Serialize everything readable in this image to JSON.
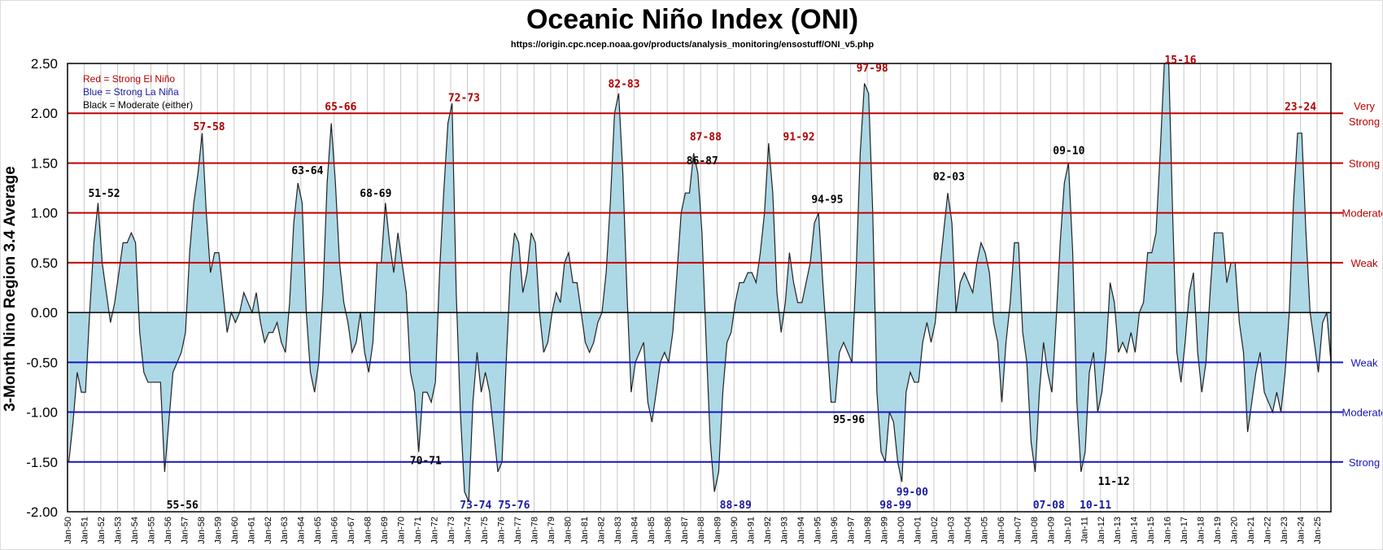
{
  "chart_data": {
    "type": "area",
    "title": "Oceanic Niño Index (ONI)",
    "subtitle": "https://origin.cpc.ncep.noaa.gov/products/analysis_monitoring/ensostuff/ONI_v5.php",
    "xlabel": "",
    "ylabel": "3-Month Nino Region 3.4 Average",
    "ylim": [
      -2.0,
      2.5
    ],
    "xlim": [
      1950,
      2025.83
    ],
    "yticks": [
      "2.50",
      "2.00",
      "1.50",
      "1.00",
      "0.50",
      "0.00",
      "-0.50",
      "-1.00",
      "-1.50",
      "-2.00"
    ],
    "ytick_values": [
      2.5,
      2.0,
      1.5,
      1.0,
      0.5,
      0.0,
      -0.5,
      -1.0,
      -1.5,
      -2.0
    ],
    "xticks": [
      "Jan-50",
      "Jan-51",
      "Jan-52",
      "Jan-53",
      "Jan-54",
      "Jan-55",
      "Jan-56",
      "Jan-57",
      "Jan-58",
      "Jan-59",
      "Jan-60",
      "Jan-61",
      "Jan-62",
      "Jan-63",
      "Jan-64",
      "Jan-65",
      "Jan-66",
      "Jan-67",
      "Jan-68",
      "Jan-69",
      "Jan-70",
      "Jan-71",
      "Jan-72",
      "Jan-73",
      "Jan-74",
      "Jan-75",
      "Jan-76",
      "Jan-77",
      "Jan-78",
      "Jan-79",
      "Jan-80",
      "Jan-81",
      "Jan-82",
      "Jan-83",
      "Jan-84",
      "Jan-85",
      "Jan-86",
      "Jan-87",
      "Jan-88",
      "Jan-89",
      "Jan-90",
      "Jan-91",
      "Jan-92",
      "Jan-93",
      "Jan-94",
      "Jan-95",
      "Jan-96",
      "Jan-97",
      "Jan-98",
      "Jan-99",
      "Jan-00",
      "Jan-01",
      "Jan-02",
      "Jan-03",
      "Jan-04",
      "Jan-05",
      "Jan-06",
      "Jan-07",
      "Jan-08",
      "Jan-09",
      "Jan-10",
      "Jan-11",
      "Jan-12",
      "Jan-13",
      "Jan-14",
      "Jan-15",
      "Jan-16",
      "Jan-17",
      "Jan-18",
      "Jan-19",
      "Jan-20",
      "Jan-21",
      "Jan-22",
      "Jan-23",
      "Jan-24",
      "Jan-25"
    ],
    "grid": "vertical",
    "series_start_year": 1950,
    "series_note": "seasonal values DJF, MAM, JJA, SON per year",
    "values": [
      -1.5,
      -1.1,
      -0.6,
      -0.8,
      -0.8,
      0.0,
      0.7,
      1.1,
      0.5,
      0.2,
      -0.1,
      0.1,
      0.4,
      0.7,
      0.7,
      0.8,
      0.7,
      -0.2,
      -0.6,
      -0.7,
      -0.7,
      -0.7,
      -0.7,
      -1.6,
      -1.1,
      -0.6,
      -0.5,
      -0.4,
      -0.2,
      0.6,
      1.1,
      1.4,
      1.8,
      1.0,
      0.4,
      0.6,
      0.6,
      0.2,
      -0.2,
      0.0,
      -0.1,
      0.0,
      0.2,
      0.1,
      0.0,
      0.2,
      -0.1,
      -0.3,
      -0.2,
      -0.2,
      -0.1,
      -0.3,
      -0.4,
      0.1,
      0.9,
      1.3,
      1.1,
      0.0,
      -0.6,
      -0.8,
      -0.5,
      0.2,
      1.3,
      1.9,
      1.3,
      0.5,
      0.1,
      -0.1,
      -0.4,
      -0.3,
      0.0,
      -0.4,
      -0.6,
      -0.3,
      0.5,
      0.5,
      1.1,
      0.7,
      0.4,
      0.8,
      0.5,
      0.2,
      -0.6,
      -0.8,
      -1.4,
      -0.8,
      -0.8,
      -0.9,
      -0.7,
      0.4,
      1.2,
      1.9,
      2.1,
      0.2,
      -1.0,
      -1.8,
      -1.9,
      -0.9,
      -0.4,
      -0.8,
      -0.6,
      -0.8,
      -1.2,
      -1.6,
      -1.5,
      -0.5,
      0.4,
      0.8,
      0.7,
      0.2,
      0.4,
      0.8,
      0.7,
      0.0,
      -0.4,
      -0.3,
      0.0,
      0.2,
      0.1,
      0.5,
      0.6,
      0.3,
      0.3,
      0.0,
      -0.3,
      -0.4,
      -0.3,
      -0.1,
      0.0,
      0.4,
      1.1,
      2.0,
      2.2,
      1.4,
      0.2,
      -0.8,
      -0.5,
      -0.4,
      -0.3,
      -0.9,
      -1.1,
      -0.8,
      -0.5,
      -0.4,
      -0.5,
      -0.2,
      0.4,
      1.0,
      1.2,
      1.2,
      1.6,
      1.4,
      0.8,
      -0.3,
      -1.3,
      -1.8,
      -1.6,
      -0.8,
      -0.3,
      -0.2,
      0.1,
      0.3,
      0.3,
      0.4,
      0.4,
      0.3,
      0.6,
      1.0,
      1.7,
      1.2,
      0.2,
      -0.2,
      0.1,
      0.6,
      0.3,
      0.1,
      0.1,
      0.3,
      0.5,
      0.9,
      1.0,
      0.3,
      -0.3,
      -0.9,
      -0.9,
      -0.4,
      -0.3,
      -0.4,
      -0.5,
      0.4,
      1.6,
      2.3,
      2.2,
      1.0,
      -0.8,
      -1.4,
      -1.5,
      -1.0,
      -1.1,
      -1.5,
      -1.7,
      -0.8,
      -0.6,
      -0.7,
      -0.7,
      -0.3,
      -0.1,
      -0.3,
      -0.1,
      0.4,
      0.8,
      1.2,
      0.9,
      0.0,
      0.3,
      0.4,
      0.3,
      0.2,
      0.5,
      0.7,
      0.6,
      0.4,
      -0.1,
      -0.3,
      -0.9,
      -0.3,
      0.1,
      0.7,
      0.7,
      -0.2,
      -0.5,
      -1.3,
      -1.6,
      -0.8,
      -0.3,
      -0.6,
      -0.8,
      -0.1,
      0.7,
      1.3,
      1.5,
      0.6,
      -0.9,
      -1.6,
      -1.4,
      -0.6,
      -0.4,
      -1.0,
      -0.8,
      -0.4,
      0.3,
      0.1,
      -0.4,
      -0.3,
      -0.4,
      -0.2,
      -0.4,
      0.0,
      0.1,
      0.6,
      0.6,
      0.8,
      1.6,
      2.5,
      2.6,
      1.0,
      -0.4,
      -0.7,
      -0.3,
      0.2,
      0.4,
      -0.4,
      -0.8,
      -0.5,
      0.2,
      0.8,
      0.8,
      0.8,
      0.3,
      0.5,
      0.5,
      -0.1,
      -0.4,
      -1.2,
      -0.9,
      -0.6,
      -0.4,
      -0.8,
      -0.9,
      -1.0,
      -0.8,
      -1.0,
      -0.6,
      0.0,
      1.1,
      1.8,
      1.8,
      0.8,
      0.0,
      -0.3,
      -0.6,
      -0.1,
      0.0,
      -0.5
    ],
    "thresholds": [
      {
        "value": 2.0,
        "label": "Very Strong",
        "color": "#c00000"
      },
      {
        "value": 1.5,
        "label": "Strong",
        "color": "#c00000"
      },
      {
        "value": 1.0,
        "label": "Moderate",
        "color": "#c00000"
      },
      {
        "value": 0.5,
        "label": "Weak",
        "color": "#c00000"
      },
      {
        "value": 0.0,
        "label": "",
        "color": "#000000"
      },
      {
        "value": -0.5,
        "label": "Weak",
        "color": "#1515c0"
      },
      {
        "value": -1.0,
        "label": "Moderate",
        "color": "#1515c0"
      },
      {
        "value": -1.5,
        "label": "Strong",
        "color": "#1515c0"
      }
    ],
    "legend": [
      {
        "text": "Red = Strong  El Niño",
        "color": "#b00000"
      },
      {
        "text": "Blue = Strong  La Niña",
        "color": "#1a1aa0"
      },
      {
        "text": "Black = Moderate  (either)",
        "color": "#000000"
      }
    ],
    "legend_position": "top-left",
    "annotations": [
      {
        "text": "51-52",
        "x": 1952.2,
        "y": 1.2,
        "color": "#000000"
      },
      {
        "text": "57-58",
        "x": 1958.5,
        "y": 1.87,
        "color": "#b00000"
      },
      {
        "text": "63-64",
        "x": 1964.4,
        "y": 1.43,
        "color": "#000000"
      },
      {
        "text": "65-66",
        "x": 1966.4,
        "y": 2.07,
        "color": "#b00000"
      },
      {
        "text": "68-69",
        "x": 1968.5,
        "y": 1.2,
        "color": "#000000"
      },
      {
        "text": "72-73",
        "x": 1973.8,
        "y": 2.16,
        "color": "#b00000"
      },
      {
        "text": "82-83",
        "x": 1983.4,
        "y": 2.3,
        "color": "#b00000"
      },
      {
        "text": "86-87",
        "x": 1988.1,
        "y": 1.53,
        "color": "#000000"
      },
      {
        "text": "87-88",
        "x": 1988.3,
        "y": 1.77,
        "color": "#b00000"
      },
      {
        "text": "91-92",
        "x": 1993.9,
        "y": 1.77,
        "color": "#b00000"
      },
      {
        "text": "94-95",
        "x": 1995.6,
        "y": 1.14,
        "color": "#000000"
      },
      {
        "text": "97-98",
        "x": 1998.3,
        "y": 2.46,
        "color": "#b00000"
      },
      {
        "text": "02-03",
        "x": 2002.9,
        "y": 1.37,
        "color": "#000000"
      },
      {
        "text": "09-10",
        "x": 2010.1,
        "y": 1.63,
        "color": "#000000"
      },
      {
        "text": "15-16",
        "x": 2016.8,
        "y": 2.54,
        "color": "#b00000"
      },
      {
        "text": "23-24",
        "x": 2024.0,
        "y": 2.07,
        "color": "#b00000"
      },
      {
        "text": "55-56",
        "x": 1956.9,
        "y": -1.97,
        "color": "#000000"
      },
      {
        "text": "70-71",
        "x": 1971.5,
        "y": -1.48,
        "color": "#000000"
      },
      {
        "text": "73-74",
        "x": 1974.5,
        "y": -2.45,
        "color": "#1a1aa0"
      },
      {
        "text": "75-76",
        "x": 1976.8,
        "y": -2.18,
        "color": "#1a1aa0"
      },
      {
        "text": "88-89",
        "x": 1990.1,
        "y": -2.39,
        "color": "#1a1aa0"
      },
      {
        "text": "95-96",
        "x": 1996.9,
        "y": -1.07,
        "color": "#000000"
      },
      {
        "text": "98-99",
        "x": 1999.7,
        "y": -2.12,
        "color": "#1a1aa0"
      },
      {
        "text": "99-00",
        "x": 2000.7,
        "y": -2.24,
        "color": "#1a1aa0"
      },
      {
        "text": "07-08",
        "x": 2008.9,
        "y": -2.18,
        "color": "#1a1aa0"
      },
      {
        "text": "10-11",
        "x": 2011.7,
        "y": -2.18,
        "color": "#1a1aa0"
      },
      {
        "text": "11-12",
        "x": 2012.8,
        "y": -1.69,
        "color": "#000000"
      }
    ],
    "fill_color": "#add8e6"
  }
}
